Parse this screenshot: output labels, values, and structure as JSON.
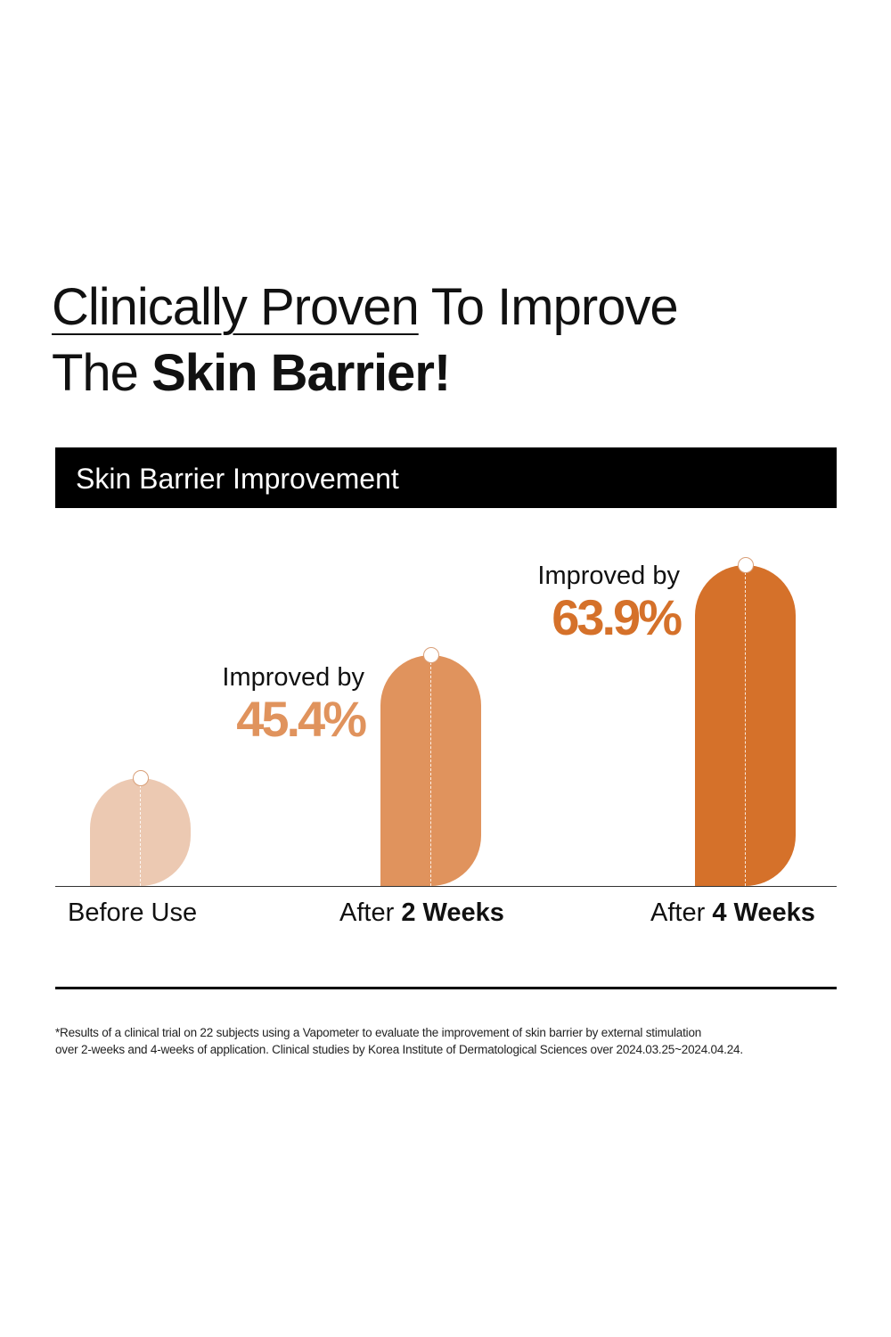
{
  "headline": {
    "underlined": "Clinically Proven",
    "rest_line1": " To Improve",
    "line2_regular": "The ",
    "line2_bold": "Skin Barrier!"
  },
  "chart_data": {
    "type": "bar",
    "title": "Skin Barrier Improvement",
    "categories": [
      "Before Use",
      "After 2 Weeks",
      "After 4 Weeks"
    ],
    "category_parts": [
      {
        "regular": "Before Use",
        "bold": ""
      },
      {
        "regular": "After ",
        "bold": "2 Weeks"
      },
      {
        "regular": "After ",
        "bold": "4 Weeks"
      }
    ],
    "improvement_percent": [
      0,
      45.4,
      63.9
    ],
    "annotations": [
      null,
      {
        "prefix": "Improved by",
        "value": "45.4%"
      },
      {
        "prefix": "Improved by",
        "value": "63.9%"
      }
    ],
    "colors": [
      "#ecc9b2",
      "#e0935d",
      "#d5712a"
    ],
    "xlabel": "",
    "ylabel": "",
    "grid": false
  },
  "footnote": {
    "line1": "*Results of a clinical trial on 22 subjects using a Vapometer to evaluate the improvement of skin barrier by external stimulation",
    "line2": "over 2-weeks and 4-weeks of application. Clinical studies by Korea Institute of Dermatological Sciences over 2024.03.25~2024.04.24."
  }
}
